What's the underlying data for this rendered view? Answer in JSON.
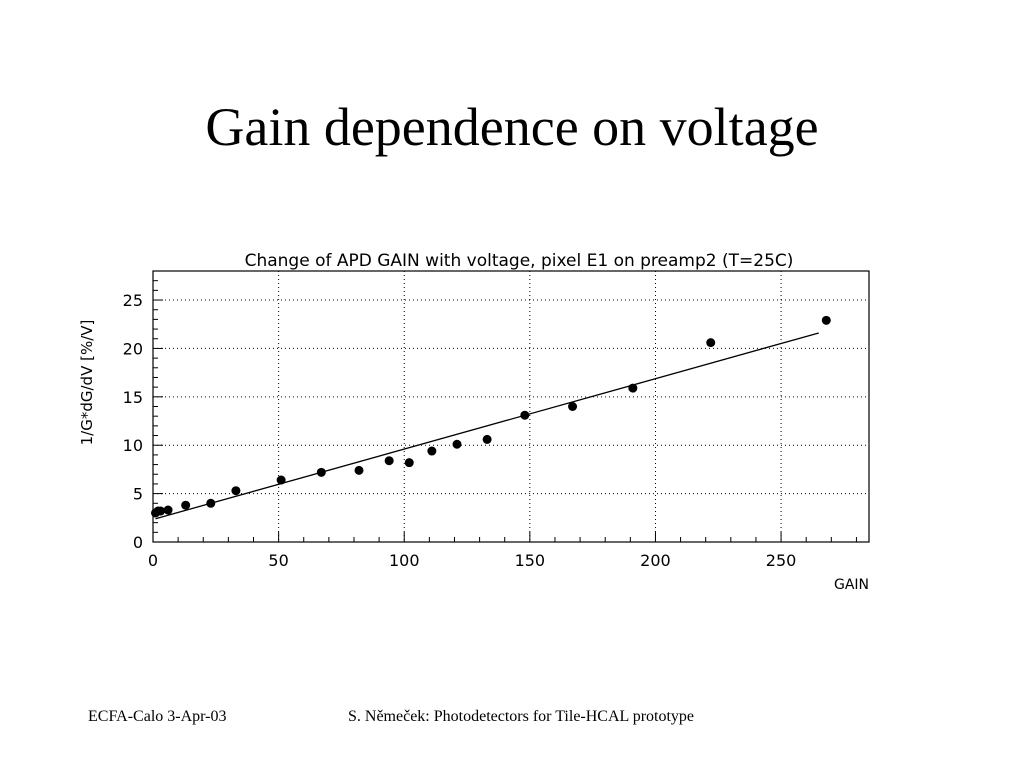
{
  "slide": {
    "title": "Gain dependence on voltage",
    "footer_left": "ECFA-Calo 3-Apr-03",
    "footer_right": "S. Němeček: Photodetectors for Tile-HCAL prototype"
  },
  "chart_data": {
    "type": "scatter",
    "title": "Change of APD GAIN with voltage, pixel E1 on preamp2 (T=25C)",
    "xlabel": "GAIN",
    "ylabel": "1/G*dG/dV [%/V]",
    "xlim": [
      0,
      285
    ],
    "ylim": [
      0,
      28
    ],
    "xticks": [
      0,
      50,
      100,
      150,
      200,
      250
    ],
    "yticks": [
      0,
      5,
      10,
      15,
      20,
      25
    ],
    "grid": true,
    "points": [
      {
        "x": 1,
        "y": 3.0
      },
      {
        "x": 2,
        "y": 3.2
      },
      {
        "x": 3,
        "y": 3.2
      },
      {
        "x": 6,
        "y": 3.3
      },
      {
        "x": 13,
        "y": 3.8
      },
      {
        "x": 23,
        "y": 4.0
      },
      {
        "x": 33,
        "y": 5.3
      },
      {
        "x": 51,
        "y": 6.4
      },
      {
        "x": 67,
        "y": 7.2
      },
      {
        "x": 82,
        "y": 7.4
      },
      {
        "x": 94,
        "y": 8.4
      },
      {
        "x": 102,
        "y": 8.2
      },
      {
        "x": 111,
        "y": 9.4
      },
      {
        "x": 121,
        "y": 10.1
      },
      {
        "x": 133,
        "y": 10.6
      },
      {
        "x": 148,
        "y": 13.1
      },
      {
        "x": 167,
        "y": 14.0
      },
      {
        "x": 191,
        "y": 15.9
      },
      {
        "x": 222,
        "y": 20.6
      },
      {
        "x": 268,
        "y": 22.9
      }
    ],
    "fit_line": {
      "x": [
        1,
        265
      ],
      "y": [
        2.4,
        21.6
      ]
    }
  }
}
